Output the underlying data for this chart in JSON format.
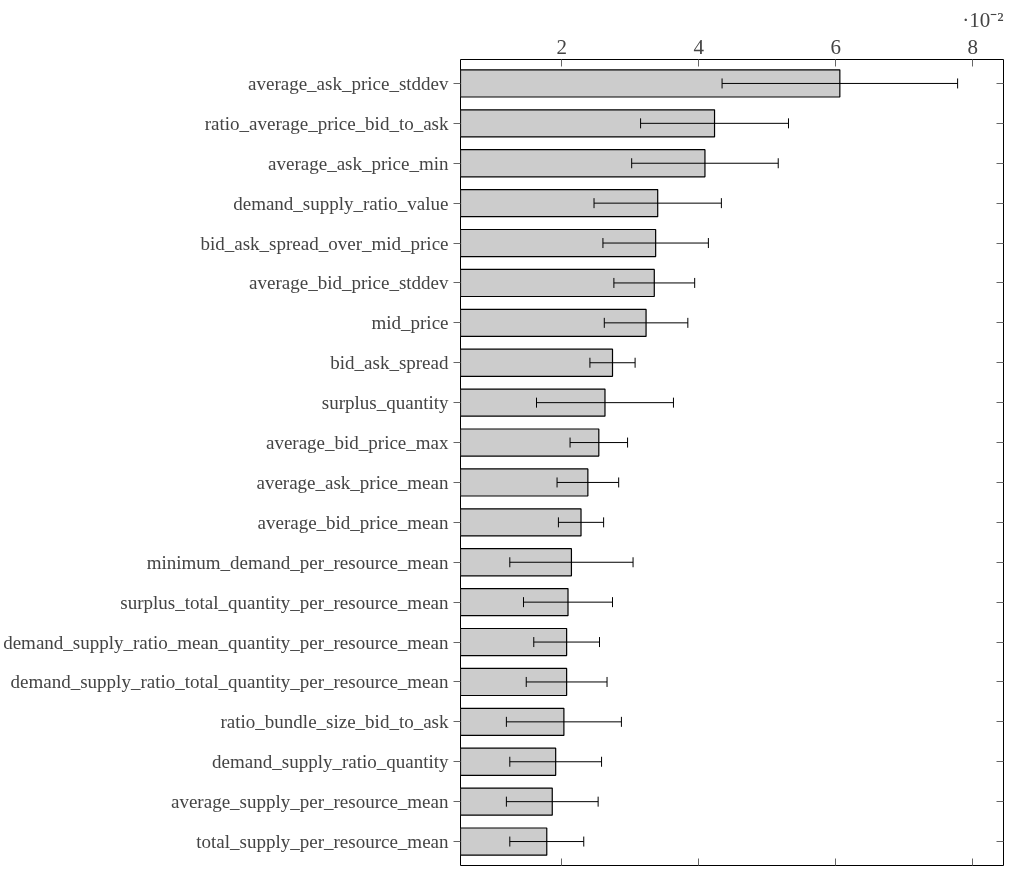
{
  "chart_data": {
    "type": "bar",
    "orientation": "horizontal",
    "categories": [
      "average_ask_price_stddev",
      "ratio_average_price_bid_to_ask",
      "average_ask_price_min",
      "demand_supply_ratio_value",
      "bid_ask_spread_over_mid_price",
      "average_bid_price_stddev",
      "mid_price",
      "bid_ask_spread",
      "surplus_quantity",
      "average_bid_price_max",
      "average_ask_price_mean",
      "average_bid_price_mean",
      "minimum_demand_per_resource_mean",
      "surplus_total_quantity_per_resource_mean",
      "demand_supply_ratio_mean_quantity_per_resource_mean",
      "demand_supply_ratio_total_quantity_per_resource_mean",
      "ratio_bundle_size_bid_to_ask",
      "demand_supply_ratio_quantity",
      "average_supply_per_resource_mean",
      "total_supply_per_resource_mean"
    ],
    "values": [
      6.06,
      4.23,
      4.09,
      3.4,
      3.37,
      3.35,
      3.23,
      2.74,
      2.63,
      2.54,
      2.38,
      2.28,
      2.14,
      2.09,
      2.07,
      2.07,
      2.03,
      1.91,
      1.86,
      1.78
    ],
    "errors": [
      1.72,
      1.08,
      1.07,
      0.93,
      0.77,
      0.59,
      0.61,
      0.33,
      1.0,
      0.42,
      0.45,
      0.33,
      0.9,
      0.65,
      0.48,
      0.59,
      0.84,
      0.67,
      0.67,
      0.54
    ],
    "color": "#cccccc",
    "xlim": [
      0.52,
      8.45
    ],
    "xticks": [
      2,
      4,
      6,
      8
    ],
    "annotations": [
      "·10⁻²"
    ],
    "grid": false
  }
}
